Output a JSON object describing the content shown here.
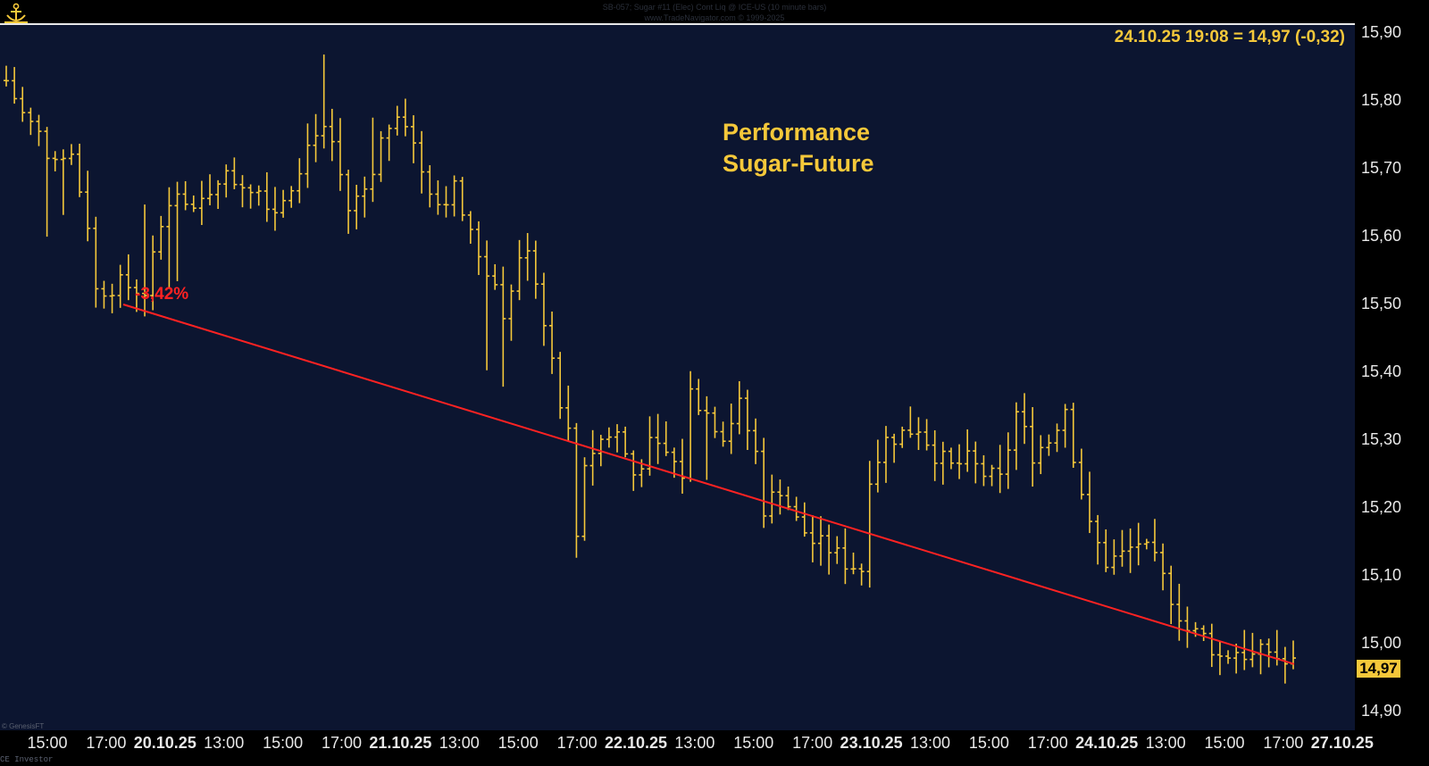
{
  "header": {
    "line1": "SB-057;  Sugar #11 (Elec) Cont Liq @ ICE-US  (10 minute bars)",
    "line2": "www.TradeNavigator.com © 1999-2025"
  },
  "quote_readout": "24.10.25 19:08 = 14,97 (-0,32)",
  "annotation": {
    "title_line1": "Performance",
    "title_line2": "Sugar-Future",
    "change_label": "-3,42%"
  },
  "last_price_label": "14,97",
  "watermark": "© GenesisFT",
  "footer": "CE Investor",
  "colors": {
    "background": "#0c1530",
    "bars": "#f5c83a",
    "trendline": "#ff2222",
    "axis_text": "#e8e8e8"
  },
  "chart_data": {
    "type": "bar",
    "style": "OHLC 10-minute bars",
    "ylim": [
      14.87,
      15.93
    ],
    "y_ticks": [
      "15,90",
      "15,80",
      "15,70",
      "15,60",
      "15,50",
      "15,40",
      "15,30",
      "15,20",
      "15,10",
      "15,00",
      "14,90"
    ],
    "y_tick_values": [
      15.9,
      15.8,
      15.7,
      15.6,
      15.5,
      15.4,
      15.3,
      15.2,
      15.1,
      15.0,
      14.9
    ],
    "x_ticks": [
      {
        "label": "15:00",
        "date": false
      },
      {
        "label": "17:00",
        "date": false
      },
      {
        "label": "20.10.25",
        "date": true
      },
      {
        "label": "13:00",
        "date": false
      },
      {
        "label": "15:00",
        "date": false
      },
      {
        "label": "17:00",
        "date": false
      },
      {
        "label": "21.10.25",
        "date": true
      },
      {
        "label": "13:00",
        "date": false
      },
      {
        "label": "15:00",
        "date": false
      },
      {
        "label": "17:00",
        "date": false
      },
      {
        "label": "22.10.25",
        "date": true
      },
      {
        "label": "13:00",
        "date": false
      },
      {
        "label": "15:00",
        "date": false
      },
      {
        "label": "17:00",
        "date": false
      },
      {
        "label": "23.10.25",
        "date": true
      },
      {
        "label": "13:00",
        "date": false
      },
      {
        "label": "15:00",
        "date": false
      },
      {
        "label": "17:00",
        "date": false
      },
      {
        "label": "24.10.25",
        "date": true
      },
      {
        "label": "13:00",
        "date": false
      },
      {
        "label": "15:00",
        "date": false
      },
      {
        "label": "17:00",
        "date": false
      },
      {
        "label": "27.10.25",
        "date": true
      }
    ],
    "price_path": [
      [
        0,
        15.83
      ],
      [
        2,
        15.78
      ],
      [
        4,
        15.75
      ],
      [
        6,
        15.7
      ],
      [
        8,
        15.72
      ],
      [
        10,
        15.62
      ],
      [
        11,
        15.52
      ],
      [
        14,
        15.53
      ],
      [
        17,
        15.52
      ],
      [
        19,
        15.62
      ],
      [
        21,
        15.66
      ],
      [
        23,
        15.63
      ],
      [
        26,
        15.69
      ],
      [
        29,
        15.68
      ],
      [
        31,
        15.67
      ],
      [
        33,
        15.64
      ],
      [
        35,
        15.68
      ],
      [
        38,
        15.76
      ],
      [
        40,
        15.74
      ],
      [
        42,
        15.64
      ],
      [
        44,
        15.67
      ],
      [
        46,
        15.74
      ],
      [
        48,
        15.79
      ],
      [
        49,
        15.77
      ],
      [
        51,
        15.7
      ],
      [
        53,
        15.65
      ],
      [
        55,
        15.67
      ],
      [
        57,
        15.6
      ],
      [
        59,
        15.55
      ],
      [
        61,
        15.49
      ],
      [
        63,
        15.56
      ],
      [
        64,
        15.59
      ],
      [
        66,
        15.48
      ],
      [
        68,
        15.36
      ],
      [
        69,
        15.31
      ],
      [
        70,
        15.16
      ],
      [
        71,
        15.27
      ],
      [
        73,
        15.3
      ],
      [
        75,
        15.31
      ],
      [
        77,
        15.25
      ],
      [
        79,
        15.29
      ],
      [
        81,
        15.28
      ],
      [
        83,
        15.25
      ],
      [
        84,
        15.37
      ],
      [
        86,
        15.34
      ],
      [
        88,
        15.31
      ],
      [
        90,
        15.35
      ],
      [
        92,
        15.28
      ],
      [
        93,
        15.2
      ],
      [
        95,
        15.23
      ],
      [
        97,
        15.18
      ],
      [
        99,
        15.15
      ],
      [
        101,
        15.14
      ],
      [
        103,
        15.12
      ],
      [
        105,
        15.11
      ],
      [
        106,
        15.25
      ],
      [
        108,
        15.3
      ],
      [
        110,
        15.31
      ],
      [
        112,
        15.32
      ],
      [
        114,
        15.28
      ],
      [
        116,
        15.26
      ],
      [
        118,
        15.27
      ],
      [
        120,
        15.25
      ],
      [
        122,
        15.24
      ],
      [
        124,
        15.34
      ],
      [
        126,
        15.28
      ],
      [
        128,
        15.3
      ],
      [
        130,
        15.35
      ],
      [
        131,
        15.28
      ],
      [
        133,
        15.17
      ],
      [
        135,
        15.12
      ],
      [
        137,
        15.13
      ],
      [
        139,
        15.15
      ],
      [
        141,
        15.12
      ],
      [
        143,
        15.07
      ],
      [
        145,
        15.02
      ],
      [
        147,
        15.01
      ],
      [
        149,
        14.98
      ],
      [
        151,
        14.99
      ],
      [
        153,
        14.98
      ],
      [
        155,
        14.99
      ],
      [
        157,
        14.97
      ],
      [
        158,
        14.97
      ]
    ],
    "n_bars": 159,
    "trendline": {
      "from": [
        15.5,
        15.5
      ],
      "to": [
        14.97,
        14.97
      ],
      "change": "-3,42%"
    }
  }
}
